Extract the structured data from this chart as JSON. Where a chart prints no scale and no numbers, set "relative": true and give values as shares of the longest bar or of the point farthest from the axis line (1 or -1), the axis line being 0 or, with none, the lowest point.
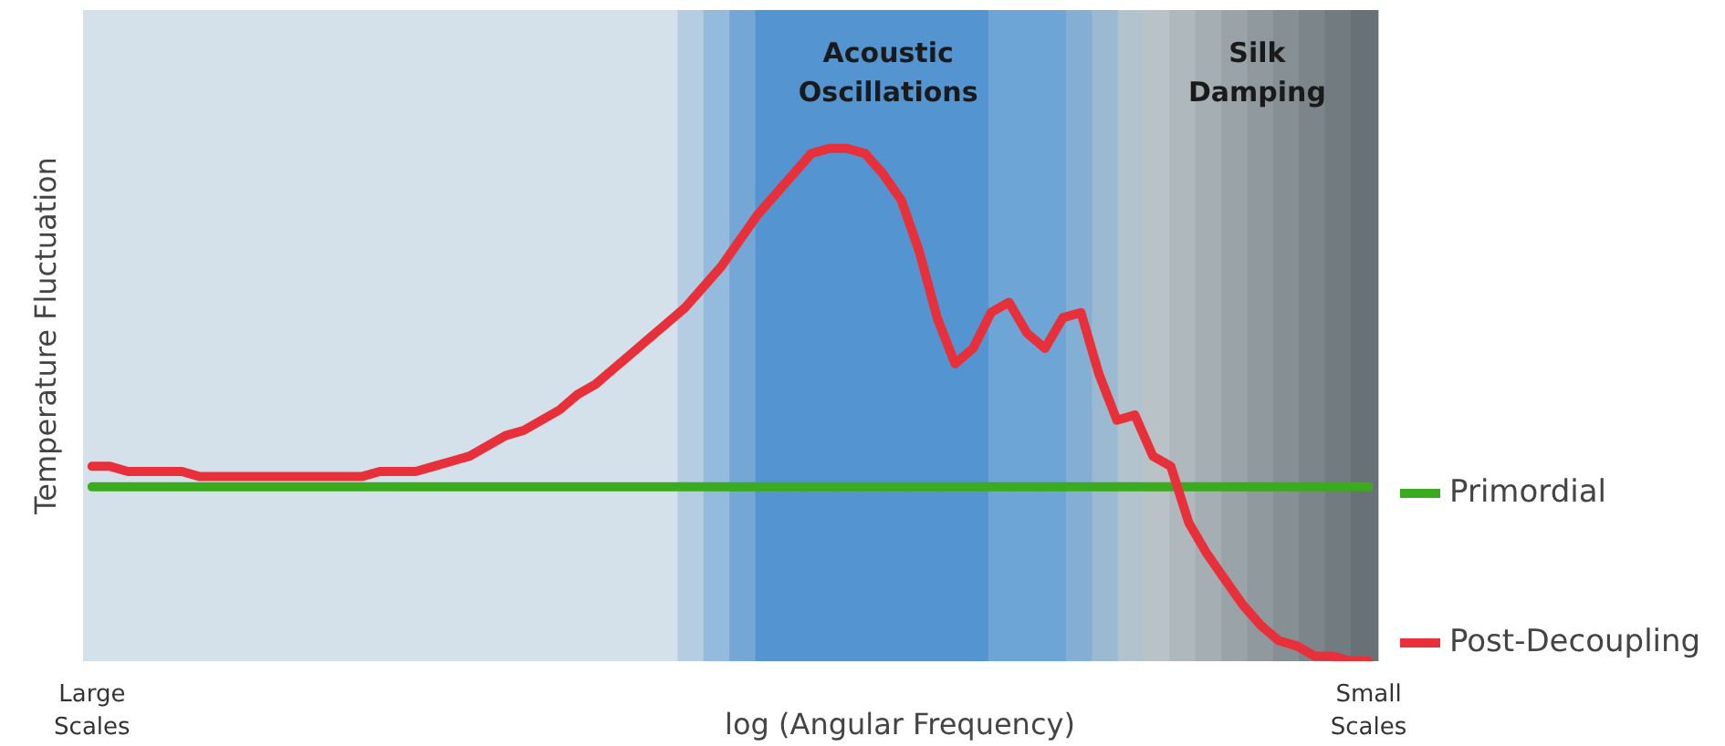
{
  "chart_data": {
    "type": "line",
    "relative": true,
    "xlabel": "log (Angular Frequency)",
    "ylabel": "Temperature Fluctuation",
    "categories": [
      "Large Scales",
      null,
      null,
      null,
      null,
      null,
      null,
      null,
      null,
      null,
      null,
      null,
      null,
      null,
      null,
      null,
      null,
      null,
      null,
      null,
      null,
      null,
      null,
      null,
      null,
      null,
      null,
      null,
      null,
      null,
      null,
      null,
      null,
      null,
      null,
      null,
      null,
      null,
      null,
      null,
      null,
      null,
      null,
      null,
      null,
      null,
      null,
      null,
      null,
      null,
      null,
      null,
      null,
      null,
      null,
      null,
      null,
      null,
      null,
      null,
      null,
      null,
      null,
      null,
      null,
      null,
      null,
      null,
      null,
      null,
      null,
      "Small Scales"
    ],
    "series": [
      {
        "name": "Primordial",
        "color": "#3aaa1e",
        "values": [
          0.34,
          0.34,
          0.34,
          0.34,
          0.34,
          0.34,
          0.34,
          0.34,
          0.34,
          0.34,
          0.34,
          0.34,
          0.34,
          0.34,
          0.34,
          0.34,
          0.34,
          0.34,
          0.34,
          0.34,
          0.34,
          0.34,
          0.34,
          0.34,
          0.34,
          0.34,
          0.34,
          0.34,
          0.34,
          0.34,
          0.34,
          0.34,
          0.34,
          0.34,
          0.34,
          0.34,
          0.34,
          0.34,
          0.34,
          0.34,
          0.34,
          0.34,
          0.34,
          0.34,
          0.34,
          0.34,
          0.34,
          0.34,
          0.34,
          0.34,
          0.34,
          0.34,
          0.34,
          0.34,
          0.34,
          0.34,
          0.34,
          0.34,
          0.34,
          0.34,
          0.34,
          0.34,
          0.34,
          0.34,
          0.34,
          0.34,
          0.34,
          0.34,
          0.34,
          0.34,
          0.34,
          0.34
        ]
      },
      {
        "name": "Post-Decoupling",
        "color": "#e8303a",
        "values": [
          0.38,
          0.38,
          0.37,
          0.37,
          0.37,
          0.37,
          0.36,
          0.36,
          0.36,
          0.36,
          0.36,
          0.36,
          0.36,
          0.36,
          0.36,
          0.36,
          0.37,
          0.37,
          0.37,
          0.38,
          0.39,
          0.4,
          0.42,
          0.44,
          0.45,
          0.47,
          0.49,
          0.52,
          0.54,
          0.57,
          0.6,
          0.63,
          0.66,
          0.69,
          0.73,
          0.77,
          0.82,
          0.87,
          0.91,
          0.95,
          0.99,
          1.0,
          1.0,
          0.99,
          0.95,
          0.9,
          0.8,
          0.67,
          0.58,
          0.61,
          0.68,
          0.7,
          0.64,
          0.61,
          0.67,
          0.68,
          0.56,
          0.47,
          0.48,
          0.4,
          0.38,
          0.27,
          0.21,
          0.16,
          0.11,
          0.07,
          0.04,
          0.03,
          0.01,
          0.01,
          0.0,
          0.0
        ]
      }
    ],
    "annotations": [
      "Acoustic Oscillations",
      "Silk Damping"
    ],
    "legend": "right"
  }
}
